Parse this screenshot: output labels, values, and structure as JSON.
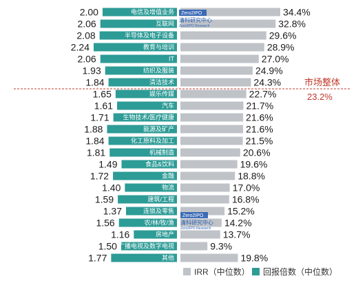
{
  "colors": {
    "multiple_bar": "#2d9b96",
    "irr_bar": "#bfc3c8",
    "market_line": "#c0392b",
    "watermark": "#2b5fb3"
  },
  "chart_data": {
    "type": "bar",
    "orientation": "horizontal",
    "categories": [
      "电信及增值业务",
      "互联网",
      "半导体及电子设备",
      "教育与培训",
      "IT",
      "纺织及服装",
      "清洁技术",
      "娱乐传媒",
      "汽车",
      "生物技术/医疗健康",
      "能源及矿产",
      "化工原料及加工",
      "机械制造",
      "食品&饮料",
      "金融",
      "物流",
      "建筑/工程",
      "连锁及零售",
      "农/林/牧/渔",
      "房地产",
      "广播电视及数字电视",
      "其他"
    ],
    "series": [
      {
        "name": "回报倍数（中位数）",
        "values": [
          2.0,
          2.06,
          2.08,
          2.24,
          2.06,
          1.93,
          1.84,
          1.65,
          1.61,
          1.71,
          1.88,
          1.84,
          1.81,
          1.49,
          1.72,
          1.4,
          1.59,
          1.37,
          1.56,
          1.16,
          1.5,
          1.77
        ],
        "labels": [
          "2.00",
          "2.06",
          "2.08",
          "2.24",
          "2.06",
          "1.93",
          "1.84",
          "1.65",
          "1.61",
          "1.71",
          "1.88",
          "1.84",
          "1.81",
          "1.49",
          "1.72",
          "1.40",
          "1.59",
          "1.37",
          "1.56",
          "1.16",
          "1.50",
          "1.77"
        ]
      },
      {
        "name": "IRR（中位数）",
        "values": [
          34.4,
          32.8,
          29.6,
          28.9,
          27.0,
          24.9,
          24.3,
          22.7,
          21.7,
          21.6,
          21.6,
          21.5,
          20.6,
          19.6,
          18.8,
          17.0,
          16.8,
          15.2,
          14.2,
          13.7,
          9.3,
          19.8
        ],
        "labels": [
          "34.4%",
          "32.8%",
          "29.6%",
          "28.9%",
          "27.0%",
          "24.9%",
          "24.3%",
          "22.7%",
          "21.7%",
          "21.6%",
          "21.6%",
          "21.5%",
          "20.6%",
          "19.6%",
          "18.8%",
          "17.0%",
          "16.8%",
          "15.2%",
          "14.2%",
          "13.7%",
          "9.3%",
          "19.8%"
        ]
      }
    ],
    "reference": {
      "label": "市场整体",
      "value": 23.2,
      "value_label": "23.2%",
      "after_category_index": 6
    },
    "legend": {
      "position": "bottom",
      "items": [
        "IRR（中位数）",
        "回报倍数（中位数）"
      ]
    },
    "watermark": {
      "brand": "Zero2IPO",
      "name": "清科研究中心",
      "sub": "Zero2IPO Research"
    }
  }
}
